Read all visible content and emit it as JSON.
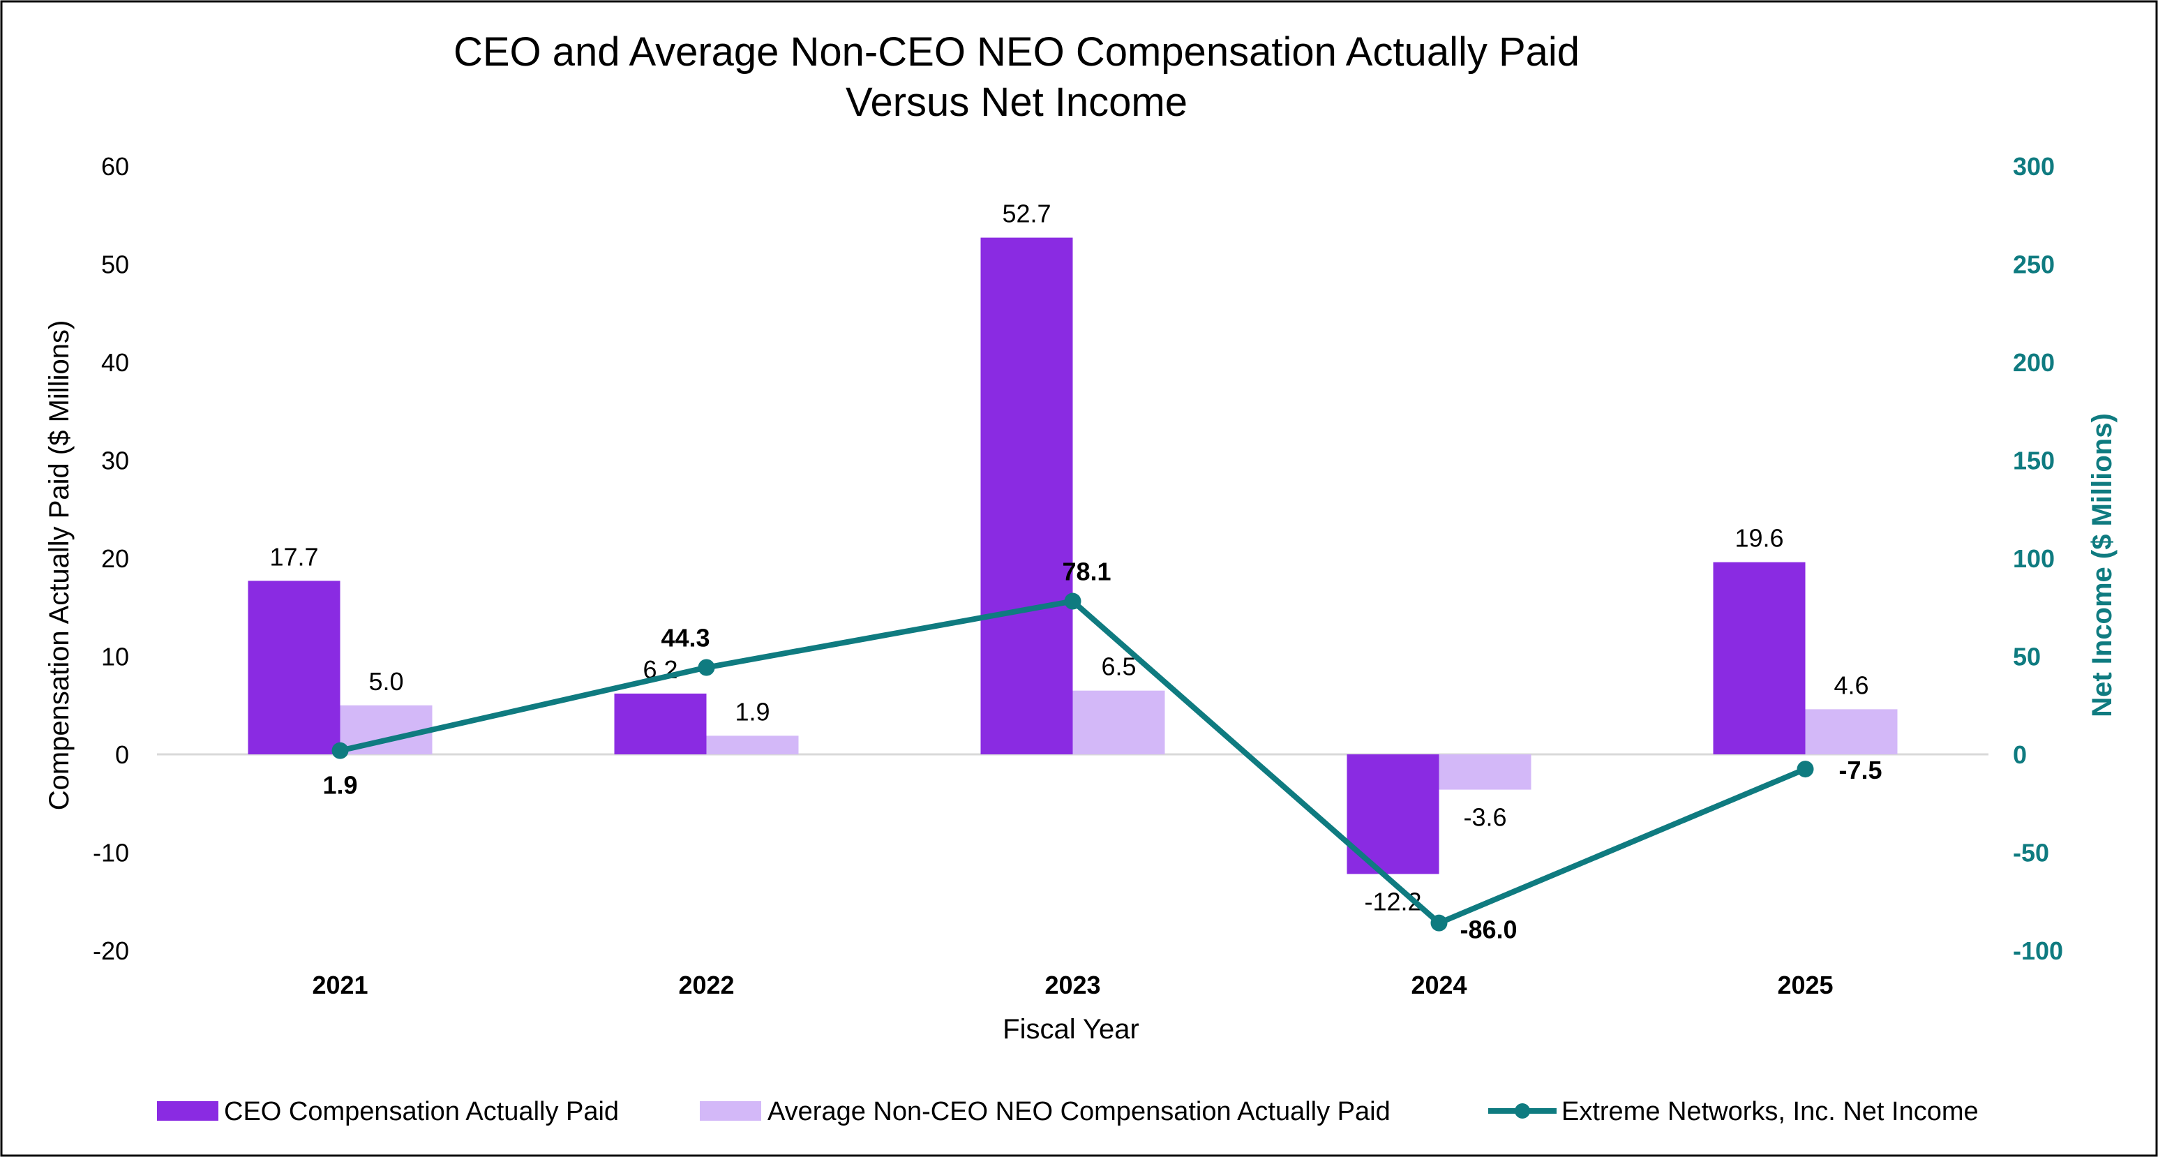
{
  "chart_data": {
    "type": "bar",
    "title": "CEO and Average Non-CEO NEO Compensation Actually Paid",
    "subtitle": "Versus Net Income",
    "xlabel": "Fiscal Year",
    "ylabel": "Compensation Actually Paid ($ Millions)",
    "y2label": "Net Income ($ Millions)",
    "categories": [
      "2021",
      "2022",
      "2023",
      "2024",
      "2025"
    ],
    "ylim": [
      -20,
      60
    ],
    "y2lim": [
      -100,
      300
    ],
    "yticks": [
      "60",
      "50",
      "40",
      "30",
      "20",
      "10",
      "0",
      "-10",
      "-20"
    ],
    "y2ticks": [
      "300",
      "250",
      "200",
      "150",
      "100",
      "50",
      "0",
      "-50",
      "-100"
    ],
    "series": [
      {
        "name": "CEO Compensation Actually Paid",
        "type": "bar",
        "axis": "left",
        "color": "#8a2be2",
        "values": [
          17.7,
          6.2,
          52.7,
          -12.2,
          19.6
        ],
        "labels": [
          "17.7",
          "6.2",
          "52.7",
          "-12.2",
          "19.6"
        ]
      },
      {
        "name": "Average Non-CEO NEO Compensation Actually Paid",
        "type": "bar",
        "axis": "left",
        "color": "#d3b8f8",
        "values": [
          5.0,
          1.9,
          6.5,
          -3.6,
          4.6
        ],
        "labels": [
          "5.0",
          "1.9",
          "6.5",
          "-3.6",
          "4.6"
        ]
      },
      {
        "name": "Extreme Networks, Inc. Net Income",
        "type": "line",
        "axis": "right",
        "color": "#0f7b80",
        "values": [
          1.9,
          44.3,
          78.1,
          -86.0,
          -7.5
        ],
        "labels": [
          "1.9",
          "44.3",
          "78.1",
          "-86.0",
          "-7.5"
        ]
      }
    ],
    "legend_position": "bottom",
    "grid": false
  }
}
